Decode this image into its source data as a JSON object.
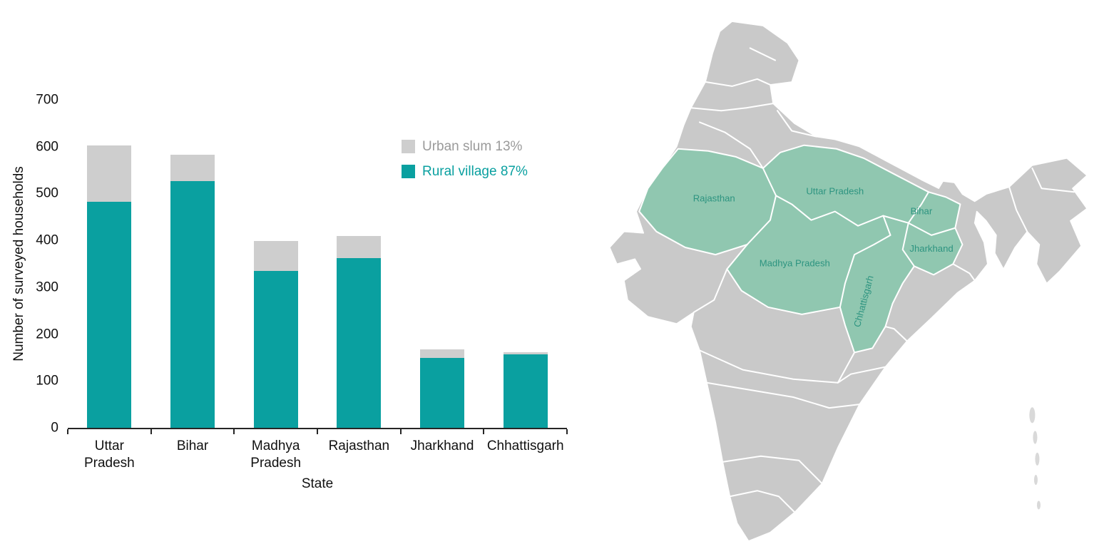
{
  "chart_data": {
    "type": "bar",
    "stacked": true,
    "title": "",
    "xlabel": "State",
    "ylabel": "Number of surveyed households",
    "ylim": [
      0,
      700
    ],
    "ytick_step": 100,
    "grid": false,
    "legend_position": "upper-right-inside",
    "categories": [
      "Uttar\nPradesh",
      "Bihar",
      "Madhya\nPradesh",
      "Rajasthan",
      "Jharkhand",
      "Chhattisgarh"
    ],
    "series": [
      {
        "name": "Urban slum 13%",
        "color": "#cecece",
        "label_color": "#9a9a9a",
        "values": [
          120,
          56,
          64,
          48,
          19,
          5
        ]
      },
      {
        "name": "Rural village 87%",
        "color": "#0aa0a0",
        "label_color": "#0aa0a0",
        "values": [
          483,
          527,
          335,
          362,
          149,
          157
        ]
      }
    ]
  },
  "map": {
    "country": "India",
    "base_color": "#c9c9c9",
    "highlight_color": "#90c7b0",
    "border_color": "#ffffff",
    "label_color": "#2d9480",
    "highlighted_states": [
      "Rajasthan",
      "Uttar Pradesh",
      "Bihar",
      "Jharkhand",
      "Madhya Pradesh",
      "Chhattisgarh"
    ],
    "labels": {
      "rajasthan": "Rajasthan",
      "uttar_pradesh": "Uttar Pradesh",
      "bihar": "Bihar",
      "jharkhand": "Jharkhand",
      "madhya_pradesh": "Madhya Pradesh",
      "chhattisgarh": "Chhattisgarh"
    }
  }
}
